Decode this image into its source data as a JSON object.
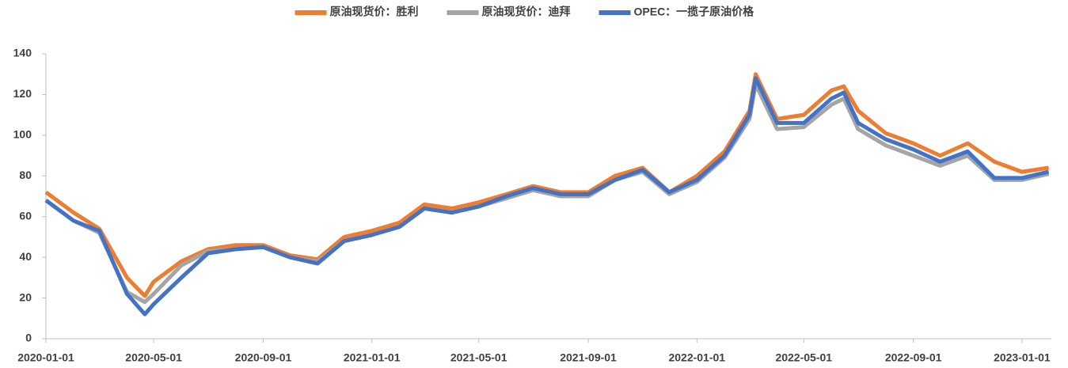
{
  "chart_data": {
    "type": "line",
    "x": [
      "2020-01-01",
      "2020-02-01",
      "2020-03-01",
      "2020-04-01",
      "2020-04-21",
      "2020-05-01",
      "2020-06-01",
      "2020-07-01",
      "2020-08-01",
      "2020-09-01",
      "2020-10-01",
      "2020-11-01",
      "2020-12-01",
      "2021-01-01",
      "2021-02-01",
      "2021-03-01",
      "2021-04-01",
      "2021-05-01",
      "2021-06-01",
      "2021-07-01",
      "2021-08-01",
      "2021-09-01",
      "2021-10-01",
      "2021-11-01",
      "2021-12-01",
      "2022-01-01",
      "2022-02-01",
      "2022-03-01",
      "2022-03-08",
      "2022-04-01",
      "2022-05-01",
      "2022-06-01",
      "2022-06-15",
      "2022-07-01",
      "2022-08-01",
      "2022-09-01",
      "2022-10-01",
      "2022-11-01",
      "2022-12-01",
      "2023-01-01",
      "2023-01-31"
    ],
    "series": [
      {
        "name": "原油现货价：胜利",
        "color": "#ed7d31",
        "values": [
          72,
          62,
          54,
          30,
          21,
          28,
          38,
          44,
          46,
          46,
          41,
          39,
          50,
          53,
          57,
          66,
          64,
          67,
          71,
          75,
          72,
          72,
          80,
          84,
          72,
          80,
          92,
          112,
          130,
          108,
          110,
          122,
          124,
          112,
          101,
          96,
          90,
          96,
          87,
          82,
          84
        ]
      },
      {
        "name": "原油现货价：迪拜",
        "color": "#a5a5a5",
        "values": [
          68,
          58,
          52,
          23,
          18,
          22,
          36,
          43,
          44,
          45,
          40,
          38,
          48,
          51,
          55,
          64,
          62,
          65,
          69,
          73,
          70,
          70,
          78,
          82,
          71,
          77,
          89,
          108,
          125,
          103,
          104,
          115,
          118,
          103,
          95,
          90,
          85,
          90,
          78,
          78,
          81
        ]
      },
      {
        "name": "OPEC：一揽子原油价格",
        "color": "#4472c4",
        "values": [
          68,
          58,
          53,
          22,
          12,
          17,
          30,
          42,
          44,
          45,
          40,
          37,
          48,
          51,
          55,
          64,
          62,
          65,
          70,
          74,
          71,
          71,
          78,
          83,
          72,
          78,
          90,
          110,
          128,
          106,
          106,
          118,
          121,
          106,
          98,
          93,
          87,
          92,
          79,
          79,
          82
        ]
      }
    ],
    "xlim": [
      "2020-01-01",
      "2023-02-03"
    ],
    "xticks": [
      "2020-01-01",
      "2020-05-01",
      "2020-09-01",
      "2021-01-01",
      "2021-05-01",
      "2021-09-01",
      "2022-01-01",
      "2022-05-01",
      "2022-09-01",
      "2023-01-01"
    ],
    "ylim": [
      0,
      140
    ],
    "yticks": [
      0,
      20,
      40,
      60,
      80,
      100,
      120,
      140
    ],
    "legend": "top"
  }
}
